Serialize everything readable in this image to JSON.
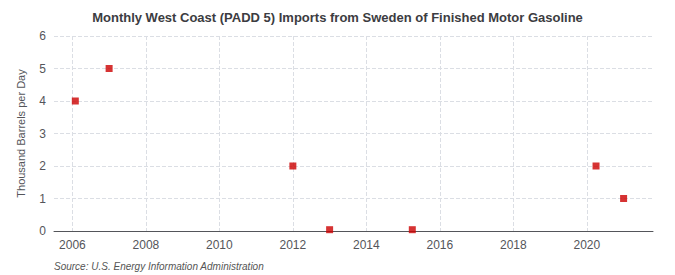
{
  "chart_data": {
    "type": "scatter",
    "title": "Monthly West Coast (PADD 5) Imports from Sweden of Finished Motor Gasoline",
    "ylabel": "Thousand Barrels per Day",
    "annotations": [
      "Source: U.S. Energy Information Administration"
    ],
    "x": [
      2006.08,
      2007.0,
      2012.0,
      2013.0,
      2015.25,
      2020.25,
      2021.0
    ],
    "values": [
      4.0,
      5.0,
      2.0,
      0.04,
      0.04,
      2.0,
      1.0
    ],
    "color": "#cc0000",
    "marker": "square",
    "xlim": [
      2005.5,
      2021.8
    ],
    "xticks": [
      2006,
      2008,
      2010,
      2012,
      2014,
      2016,
      2018,
      2020
    ],
    "ylim": [
      0,
      6
    ],
    "yticks": [
      0,
      1,
      2,
      3,
      4,
      5,
      6
    ],
    "grid": true
  }
}
